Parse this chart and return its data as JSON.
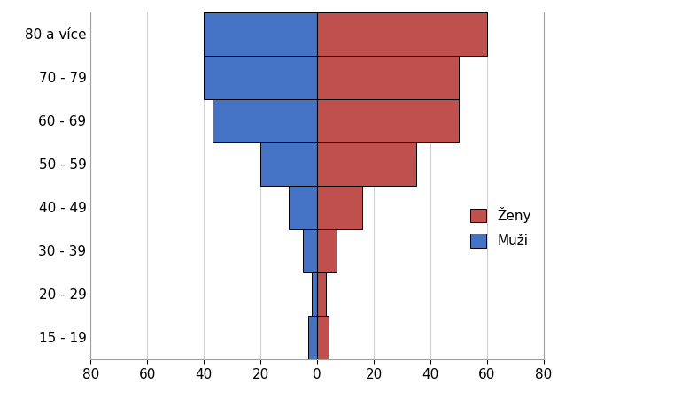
{
  "age_groups": [
    "15 - 19",
    "20 - 29",
    "30 - 39",
    "40 - 49",
    "50 - 59",
    "60 - 69",
    "70 - 79",
    "80 a více"
  ],
  "muzi": [
    3,
    2,
    5,
    10,
    20,
    37,
    40,
    40
  ],
  "zeny": [
    4,
    3,
    7,
    16,
    35,
    50,
    50,
    60
  ],
  "muzi_color": "#4472C4",
  "zeny_color": "#C0504D",
  "xlim": [
    -80,
    80
  ],
  "xticks": [
    -80,
    -60,
    -40,
    -20,
    0,
    20,
    40,
    60,
    80
  ],
  "xtick_labels": [
    "80",
    "60",
    "40",
    "20",
    "0",
    "20",
    "40",
    "60",
    "80"
  ],
  "bar_height": 1.0,
  "legend_zeny": "Ženy",
  "legend_muzi": "Muži",
  "background_color": "#FFFFFF",
  "edge_color": "#000000",
  "grid_color": "#D0D0D0"
}
